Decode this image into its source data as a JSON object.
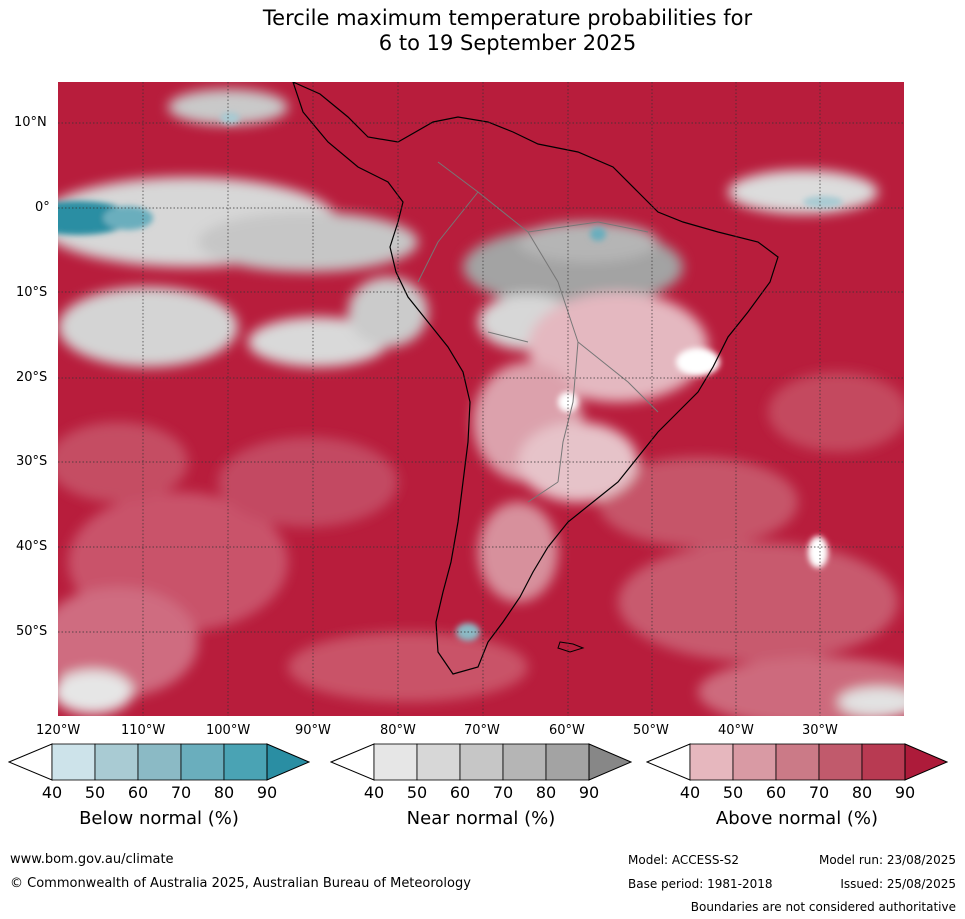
{
  "title": {
    "line1": "Tercile maximum temperature probabilities for",
    "line2": "6 to 19 September 2025"
  },
  "map": {
    "lat_labels": [
      "10°N",
      "0°",
      "10°S",
      "20°S",
      "30°S",
      "40°S",
      "50°S"
    ],
    "lon_labels": [
      "120°W",
      "110°W",
      "100°W",
      "90°W",
      "80°W",
      "70°W",
      "60°W",
      "50°W",
      "40°W",
      "30°W"
    ],
    "dominant_color": "#b81d3c",
    "graticule": "dotted"
  },
  "colorbars": [
    {
      "title": "Below normal (%)",
      "ticks": [
        "40",
        "50",
        "60",
        "70",
        "80",
        "90"
      ],
      "colors": [
        "#ffffff",
        "#cde3ea",
        "#a9cbd3",
        "#8bbac5",
        "#6aaebd",
        "#4aa3b4",
        "#2a8ea3"
      ]
    },
    {
      "title": "Near normal (%)",
      "ticks": [
        "40",
        "50",
        "60",
        "70",
        "80",
        "90"
      ],
      "colors": [
        "#ffffff",
        "#e6e6e6",
        "#d7d7d7",
        "#c6c6c6",
        "#b5b5b5",
        "#a3a3a3",
        "#878787"
      ]
    },
    {
      "title": "Above normal (%)",
      "ticks": [
        "40",
        "50",
        "60",
        "70",
        "80",
        "90"
      ],
      "colors": [
        "#ffffff",
        "#e6b7be",
        "#d99aa4",
        "#cb7a87",
        "#c15a6c",
        "#b83a52",
        "#ad1b3a"
      ]
    }
  ],
  "footer": {
    "website": "www.bom.gov.au/climate",
    "copyright": "© Commonwealth of Australia 2025, Australian Bureau of Meteorology",
    "model": "Model: ACCESS-S2",
    "model_run": "Model run: 23/08/2025",
    "base_period": "Base period: 1981-2018",
    "issued": "Issued: 25/08/2025",
    "disclaimer": "Boundaries are not considered authoritative"
  }
}
